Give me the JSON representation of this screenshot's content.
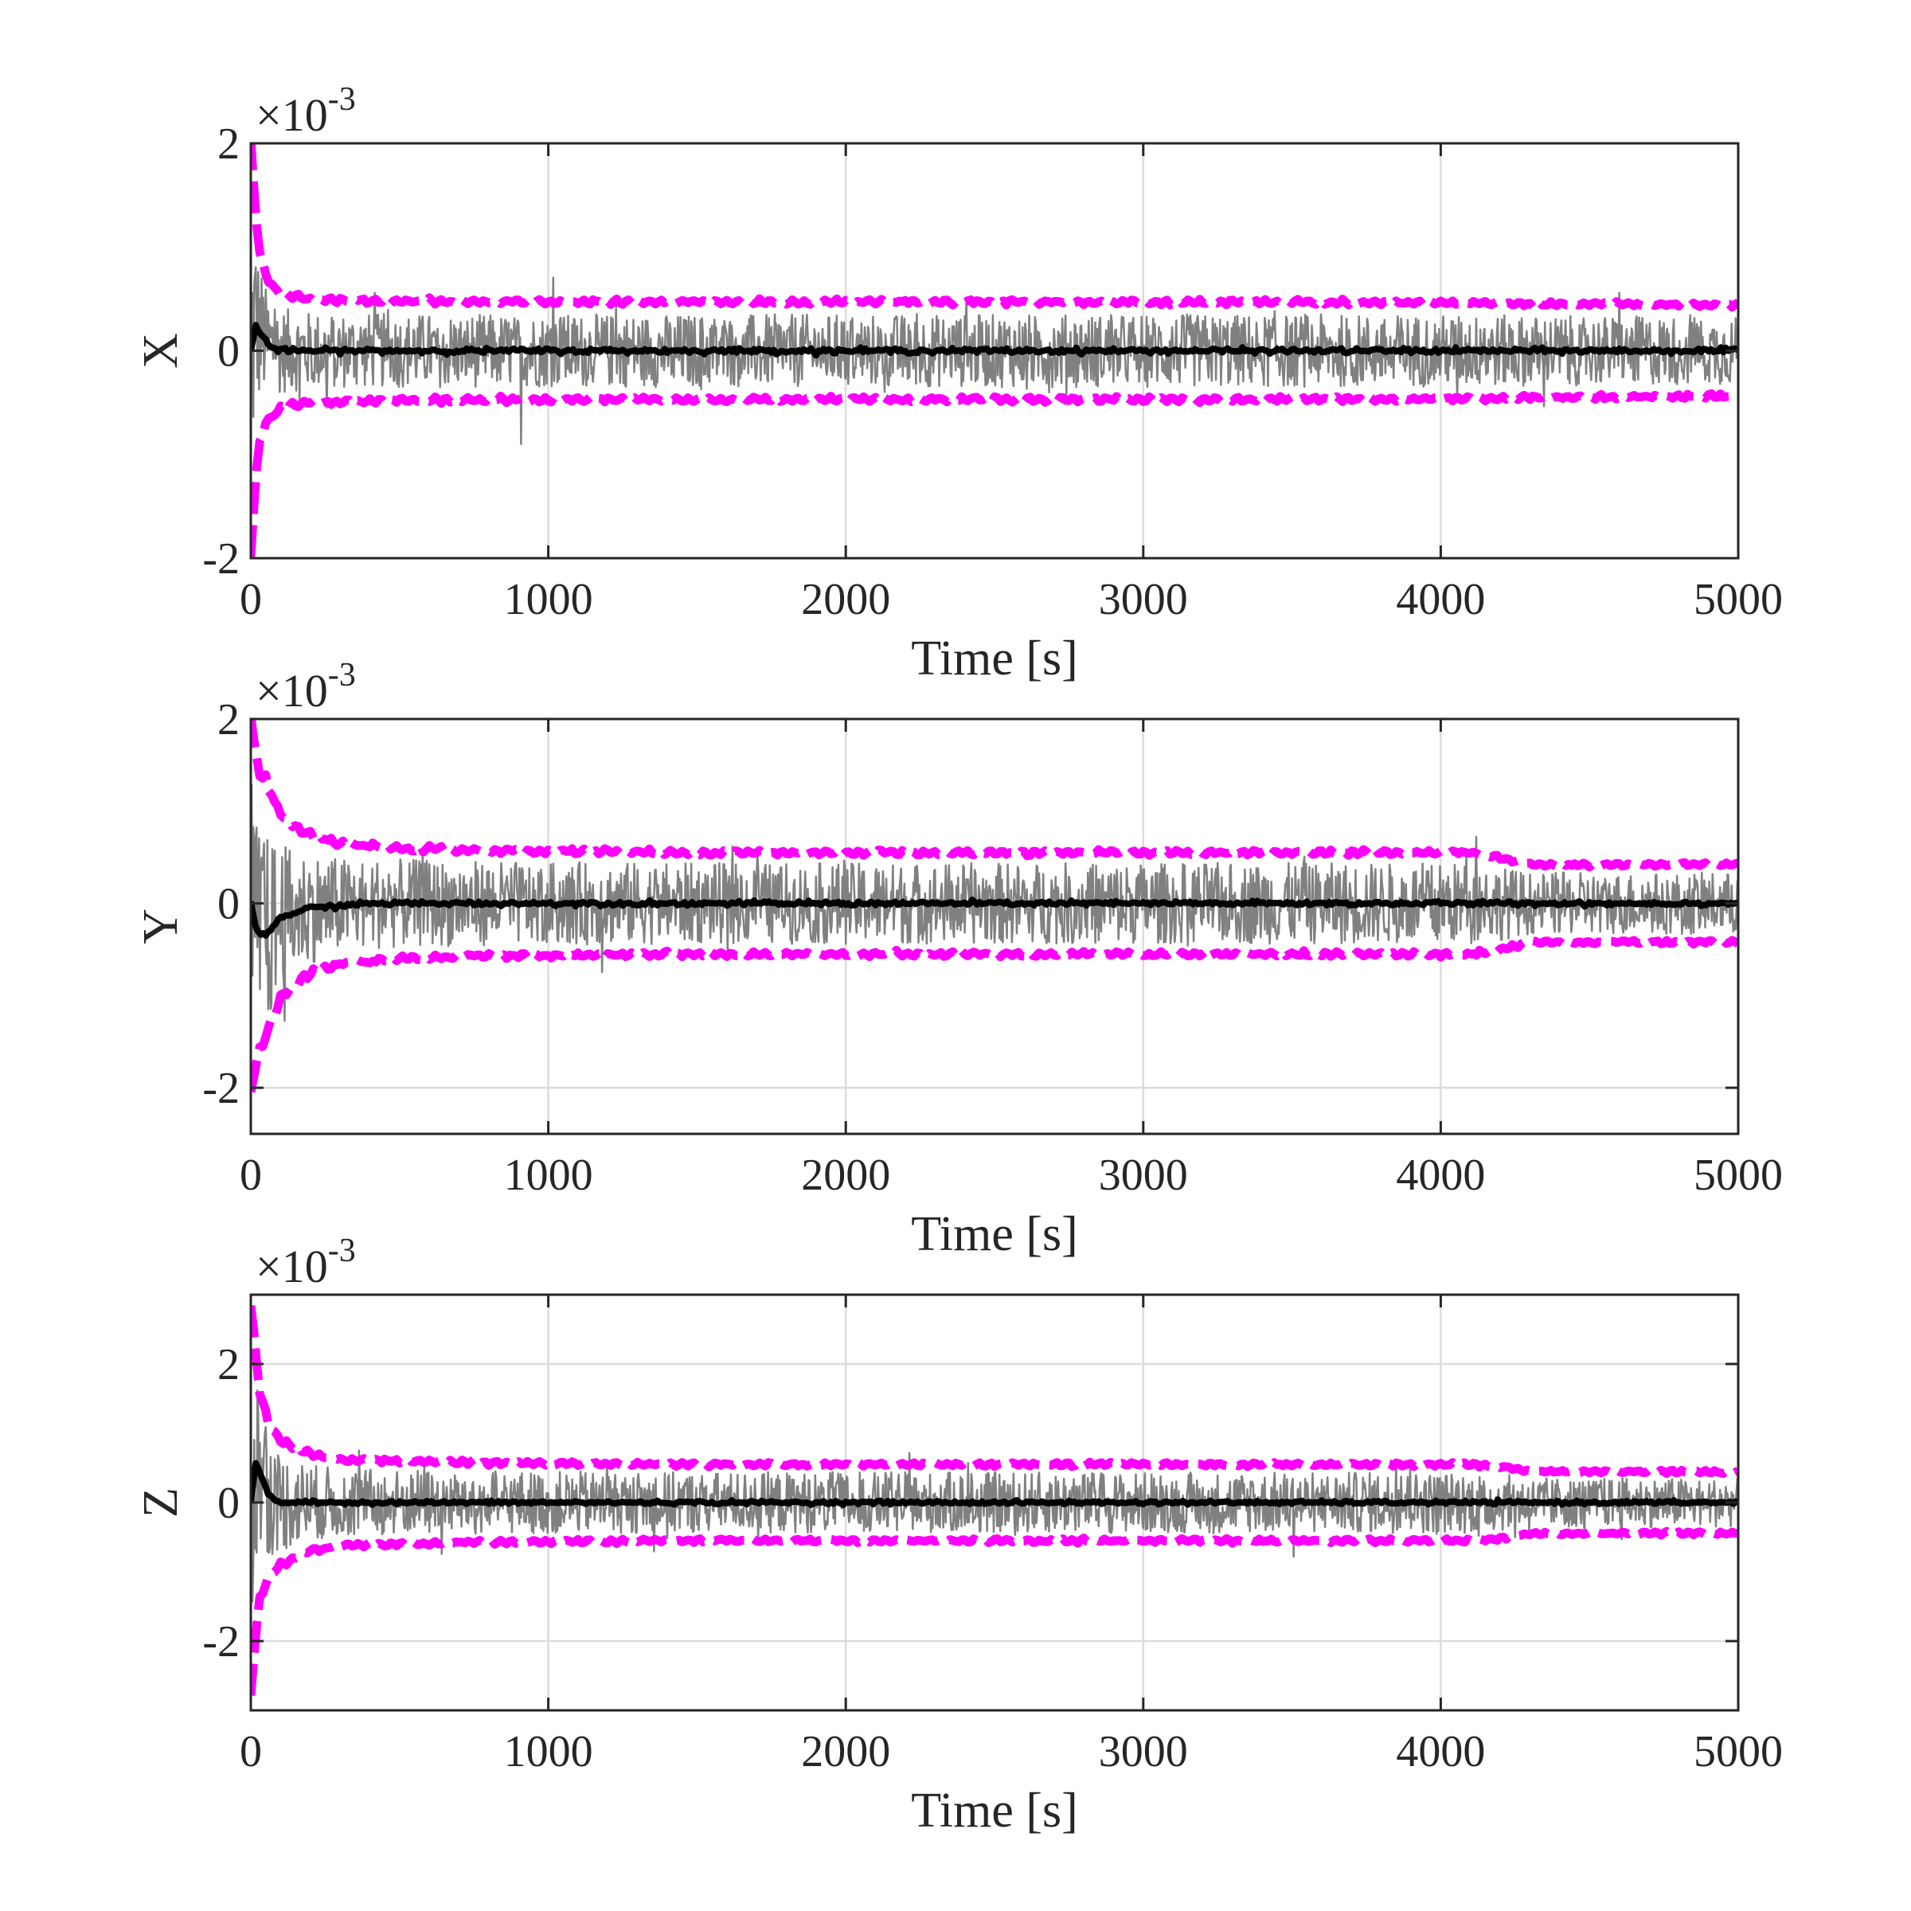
{
  "chart_data": [
    {
      "type": "line",
      "ylabel": "X",
      "xlabel": "Time [s]",
      "exponent_base": "×10",
      "exponent_power": "-3",
      "xlim": [
        0,
        5000
      ],
      "ylim": [
        -2,
        2
      ],
      "xticks": [
        0,
        1000,
        2000,
        3000,
        4000,
        5000
      ],
      "yticks": [
        -2,
        0,
        2
      ],
      "ytick_labels": [
        "-2",
        "0",
        "2"
      ],
      "grid": true,
      "envelope": {
        "t": [
          0,
          10,
          25,
          50,
          100,
          200,
          400,
          800,
          1500,
          2500,
          3500,
          4200,
          4300,
          5000
        ],
        "sigma": [
          2.0,
          1.5,
          1.0,
          0.7,
          0.55,
          0.5,
          0.48,
          0.47,
          0.47,
          0.47,
          0.47,
          0.46,
          0.45,
          0.44
        ]
      },
      "mean": {
        "t": [
          0,
          15,
          30,
          60,
          100,
          300,
          5000
        ],
        "v": [
          0.0,
          0.25,
          0.18,
          0.05,
          0.0,
          0.0,
          0.0
        ]
      },
      "noise_ratio": 0.75,
      "series": [
        {
          "color": "#808080"
        },
        {
          "color": "#000000"
        },
        {
          "color": "#ff00ff"
        }
      ]
    },
    {
      "type": "line",
      "ylabel": "Y",
      "xlabel": "Time [s]",
      "exponent_base": "×10",
      "exponent_power": "-3",
      "xlim": [
        0,
        5000
      ],
      "ylim": [
        -2.5,
        2
      ],
      "xticks": [
        0,
        1000,
        2000,
        3000,
        4000,
        5000
      ],
      "yticks": [
        -2,
        0,
        2
      ],
      "ytick_labels": [
        "-2",
        "0",
        "2"
      ],
      "grid": true,
      "envelope": {
        "t": [
          0,
          10,
          30,
          60,
          100,
          150,
          200,
          300,
          500,
          800,
          1500,
          2500,
          3500,
          4100,
          4200,
          4300,
          5000
        ],
        "sigma": [
          2.0,
          1.8,
          1.5,
          1.3,
          1.0,
          0.85,
          0.75,
          0.65,
          0.6,
          0.57,
          0.55,
          0.55,
          0.55,
          0.55,
          0.5,
          0.42,
          0.42
        ]
      },
      "mean": {
        "t": [
          0,
          20,
          50,
          100,
          200,
          400,
          5000
        ],
        "v": [
          0.0,
          -0.3,
          -0.35,
          -0.15,
          -0.05,
          0.0,
          0.0
        ]
      },
      "noise_ratio": 0.8,
      "series": [
        {
          "color": "#808080"
        },
        {
          "color": "#000000"
        },
        {
          "color": "#ff00ff"
        }
      ]
    },
    {
      "type": "line",
      "ylabel": "Z",
      "xlabel": "Time [s]",
      "exponent_base": "×10",
      "exponent_power": "-3",
      "xlim": [
        0,
        5000
      ],
      "ylim": [
        -3,
        3
      ],
      "xticks": [
        0,
        1000,
        2000,
        3000,
        4000,
        5000
      ],
      "yticks": [
        -2,
        0,
        2
      ],
      "ytick_labels": [
        "-2",
        "0",
        "2"
      ],
      "grid": true,
      "envelope": {
        "t": [
          0,
          10,
          30,
          60,
          100,
          150,
          200,
          300,
          500,
          800,
          1500,
          2500,
          3500,
          4100,
          4200,
          4300,
          5000
        ],
        "sigma": [
          2.8,
          2.3,
          1.5,
          1.1,
          0.9,
          0.8,
          0.7,
          0.62,
          0.6,
          0.57,
          0.55,
          0.55,
          0.55,
          0.55,
          0.52,
          0.45,
          0.44
        ]
      },
      "mean": {
        "t": [
          0,
          15,
          30,
          60,
          100,
          300,
          5000
        ],
        "v": [
          0.0,
          0.55,
          0.45,
          0.1,
          0.0,
          0.0,
          0.0
        ]
      },
      "noise_ratio": 0.8,
      "series": [
        {
          "color": "#808080"
        },
        {
          "color": "#000000"
        },
        {
          "color": "#ff00ff"
        }
      ]
    }
  ]
}
